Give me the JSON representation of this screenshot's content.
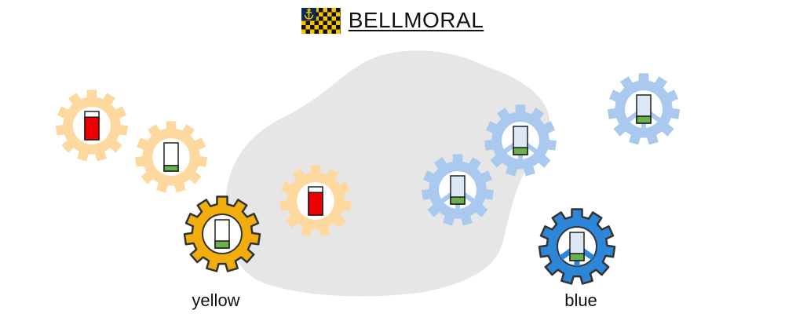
{
  "header": {
    "title": "BELLMORAL",
    "flag_icon": "anchor-checkered-flag-icon",
    "flag_colors": {
      "navy": "#0b2a55",
      "yellow": "#f5c400",
      "black": "#111111",
      "anchor": "#f5c400"
    }
  },
  "colors": {
    "yellow_gear": "#f0ad0c",
    "yellow_gear_faded": "#fdd9a0",
    "blue_gear": "#2e86d8",
    "blue_gear_faded": "#a9caee",
    "gear_outline": "#333333",
    "territory": "#e6e6e6",
    "battery_red": "#ee0000",
    "battery_green": "#6ab04c",
    "battery_blank_blue": "#dce8f6"
  },
  "teams": [
    {
      "id": "yellow",
      "label": "yellow"
    },
    {
      "id": "blue",
      "label": "blue"
    }
  ],
  "units": [
    {
      "team": "yellow",
      "state": "faded",
      "battery_level": 0.8,
      "battery_status": "red",
      "name": "gear-unit-yellow-1"
    },
    {
      "team": "yellow",
      "state": "faded",
      "battery_level": 0.2,
      "battery_status": "green",
      "name": "gear-unit-yellow-2"
    },
    {
      "team": "yellow",
      "state": "selected",
      "battery_level": 0.25,
      "battery_status": "green",
      "name": "gear-unit-yellow-active"
    },
    {
      "team": "yellow",
      "state": "faded",
      "battery_level": 0.8,
      "battery_status": "red",
      "name": "gear-unit-yellow-3"
    },
    {
      "team": "blue",
      "state": "faded",
      "battery_level": 0.25,
      "battery_status": "green",
      "name": "gear-unit-blue-1"
    },
    {
      "team": "blue",
      "state": "faded",
      "battery_level": 0.25,
      "battery_status": "green",
      "name": "gear-unit-blue-2"
    },
    {
      "team": "blue",
      "state": "faded",
      "battery_level": 0.25,
      "battery_status": "green",
      "name": "gear-unit-blue-3"
    },
    {
      "team": "blue",
      "state": "selected",
      "battery_level": 0.25,
      "battery_status": "green",
      "name": "gear-unit-blue-active"
    }
  ]
}
